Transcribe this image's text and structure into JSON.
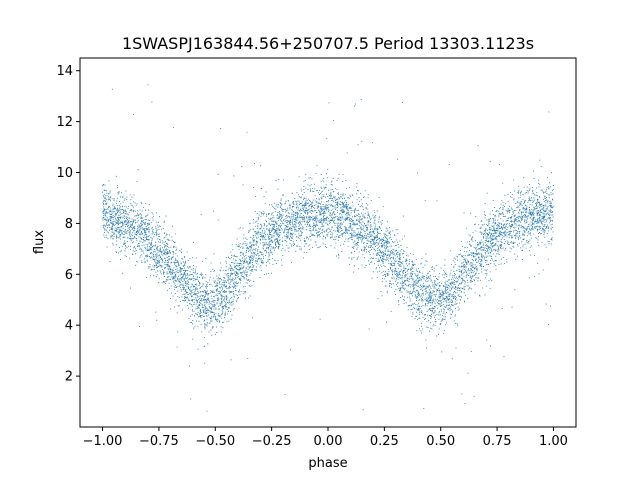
{
  "chart_data": {
    "type": "scatter",
    "title": "1SWASPJ163844.56+250707.5 Period 13303.1123s",
    "xlabel": "phase",
    "ylabel": "flux",
    "xlim": [
      -1.1,
      1.1
    ],
    "ylim": [
      0.0,
      14.5
    ],
    "xticks": [
      -1.0,
      -0.75,
      -0.5,
      -0.25,
      0.0,
      0.25,
      0.5,
      0.75,
      1.0
    ],
    "xtick_labels": [
      "−1.00",
      "−0.75",
      "−0.50",
      "−0.25",
      "0.00",
      "0.25",
      "0.50",
      "0.75",
      "1.00"
    ],
    "yticks": [
      2,
      4,
      6,
      8,
      10,
      12,
      14
    ],
    "ytick_labels": [
      "2",
      "4",
      "6",
      "8",
      "10",
      "12",
      "14"
    ],
    "grid": false,
    "point_color": "#1f77b4",
    "trend": {
      "x": [
        -1.0,
        -0.9,
        -0.8,
        -0.7,
        -0.6,
        -0.55,
        -0.5,
        -0.45,
        -0.4,
        -0.3,
        -0.2,
        -0.1,
        0.0,
        0.1,
        0.2,
        0.3,
        0.4,
        0.45,
        0.5,
        0.55,
        0.6,
        0.7,
        0.8,
        0.9,
        1.0
      ],
      "y": [
        8.4,
        8.1,
        7.4,
        6.4,
        5.4,
        5.0,
        4.9,
        5.3,
        6.1,
        7.2,
        7.9,
        8.3,
        8.4,
        8.1,
        7.4,
        6.4,
        5.3,
        5.0,
        5.0,
        5.3,
        6.1,
        7.2,
        7.9,
        8.3,
        8.4
      ],
      "scatter_spread": 0.6
    }
  }
}
